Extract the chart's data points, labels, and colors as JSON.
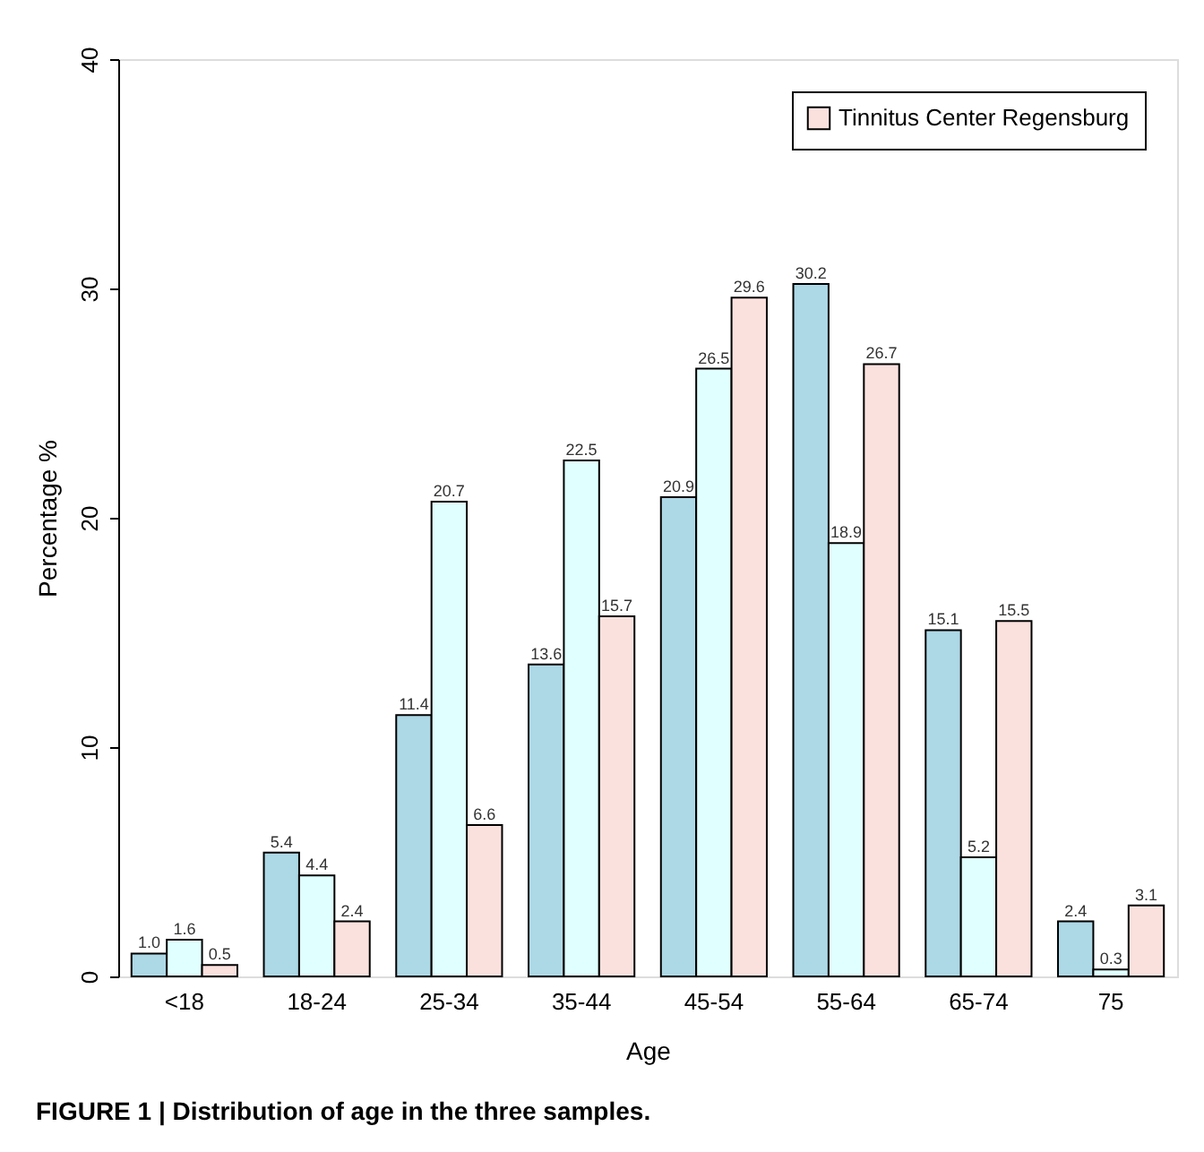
{
  "chart_data": {
    "type": "bar",
    "xlabel": "Age",
    "ylabel": "Percentage %",
    "categories": [
      "<18",
      "18-24",
      "25-34",
      "35-44",
      "45-54",
      "55-64",
      "65-74",
      "75"
    ],
    "series": [
      {
        "color": "#add8e6",
        "values": [
          1.0,
          5.4,
          11.4,
          13.6,
          20.9,
          30.2,
          15.1,
          2.4
        ],
        "value_labels": [
          "1.0",
          "5.4",
          "11.4",
          "13.6",
          "20.9",
          "30.2",
          "15.1",
          "2.4"
        ]
      },
      {
        "color": "#e0ffff",
        "values": [
          1.6,
          4.4,
          20.7,
          22.5,
          26.5,
          18.9,
          5.2,
          0.3
        ],
        "value_labels": [
          "1.6",
          "4.4",
          "20.7",
          "22.5",
          "26.5",
          "18.9",
          "5.2",
          "0.3"
        ]
      },
      {
        "name": "Tinnitus Center Regensburg",
        "color": "#fbe1de",
        "values": [
          0.5,
          2.4,
          6.6,
          15.7,
          29.6,
          26.7,
          15.5,
          3.1
        ],
        "value_labels": [
          "0.5",
          "2.4",
          "6.6",
          "15.7",
          "29.6",
          "26.7",
          "15.5",
          "3.1"
        ]
      }
    ],
    "ylim": [
      0,
      40
    ],
    "yticks": [
      0,
      10,
      20,
      30,
      40
    ],
    "grid": false,
    "legend": "top right",
    "annotations": [
      "FIGURE 1 | Distribution of age in the three samples."
    ]
  }
}
